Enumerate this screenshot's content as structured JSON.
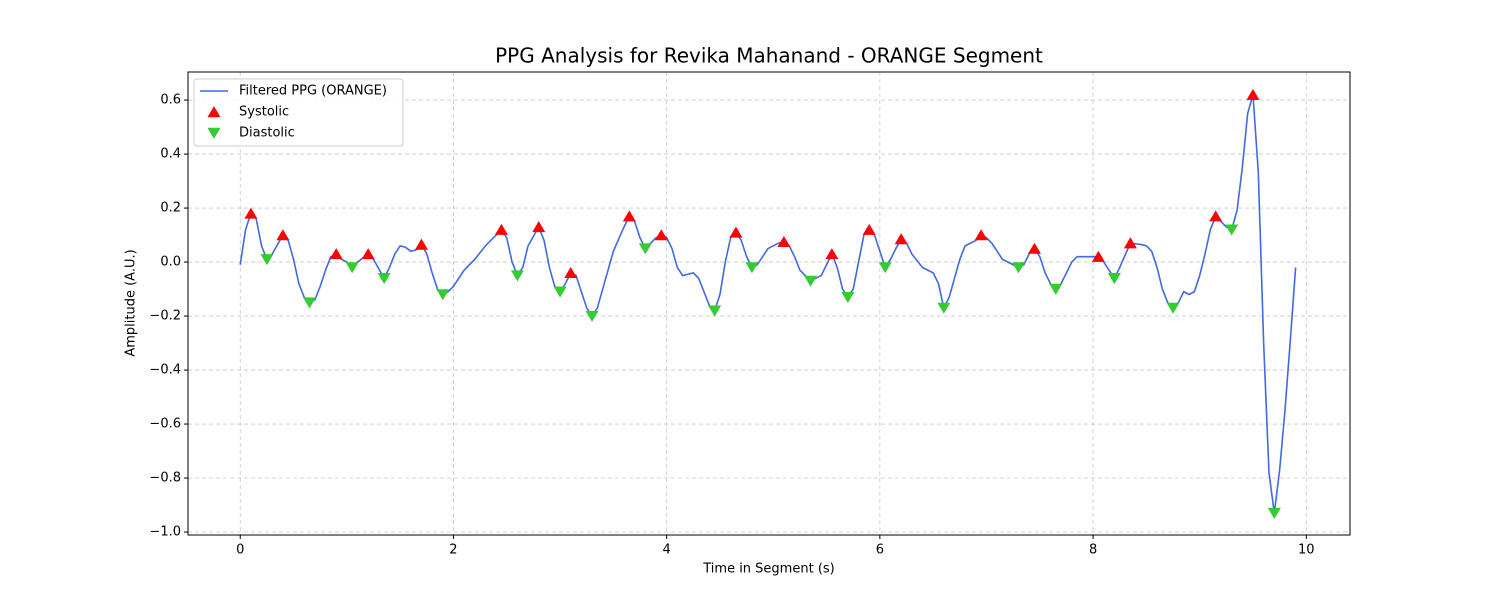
{
  "chart_data": {
    "type": "line",
    "title": "PPG Analysis for Revika Mahanand - ORANGE Segment",
    "xlabel": "Time in Segment (s)",
    "ylabel": "Amplitude (A.U.)",
    "xlim": [
      -0.49,
      10.41
    ],
    "ylim": [
      -1.011,
      0.704
    ],
    "xticks": [
      0,
      2,
      4,
      6,
      8,
      10
    ],
    "yticks": [
      {
        "value": -1.0,
        "label": "−1.0"
      },
      {
        "value": -0.8,
        "label": "−0.8"
      },
      {
        "value": -0.6,
        "label": "−0.6"
      },
      {
        "value": -0.4,
        "label": "−0.4"
      },
      {
        "value": -0.2,
        "label": "−0.2"
      },
      {
        "value": 0.0,
        "label": "0.0"
      },
      {
        "value": 0.2,
        "label": "0.2"
      },
      {
        "value": 0.4,
        "label": "0.4"
      },
      {
        "value": 0.6,
        "label": "0.6"
      }
    ],
    "grid": true,
    "legend": "upper left",
    "series": [
      {
        "name": "Filtered PPG (ORANGE)",
        "color": "#4169e1",
        "type": "line",
        "x": [
          0,
          0.05,
          0.1,
          0.15,
          0.2,
          0.25,
          0.3,
          0.4,
          0.45,
          0.5,
          0.55,
          0.6,
          0.65,
          0.7,
          0.75,
          0.8,
          0.85,
          0.9,
          0.95,
          1.0,
          1.05,
          1.1,
          1.2,
          1.25,
          1.35,
          1.4,
          1.45,
          1.5,
          1.55,
          1.6,
          1.65,
          1.7,
          1.75,
          1.8,
          1.85,
          1.9,
          1.95,
          2.0,
          2.1,
          2.2,
          2.3,
          2.4,
          2.45,
          2.5,
          2.55,
          2.6,
          2.65,
          2.7,
          2.8,
          2.85,
          2.9,
          2.95,
          3.0,
          3.05,
          3.1,
          3.15,
          3.2,
          3.25,
          3.3,
          3.35,
          3.4,
          3.5,
          3.6,
          3.65,
          3.7,
          3.75,
          3.8,
          3.85,
          3.9,
          3.95,
          4.0,
          4.05,
          4.1,
          4.15,
          4.25,
          4.3,
          4.35,
          4.4,
          4.45,
          4.5,
          4.55,
          4.6,
          4.65,
          4.7,
          4.75,
          4.8,
          4.85,
          4.95,
          5.05,
          5.1,
          5.15,
          5.2,
          5.25,
          5.35,
          5.45,
          5.5,
          5.55,
          5.6,
          5.65,
          5.7,
          5.75,
          5.8,
          5.85,
          5.9,
          5.95,
          6.0,
          6.05,
          6.1,
          6.15,
          6.2,
          6.25,
          6.3,
          6.4,
          6.5,
          6.55,
          6.6,
          6.65,
          6.75,
          6.8,
          6.9,
          6.95,
          7.0,
          7.05,
          7.15,
          7.25,
          7.3,
          7.35,
          7.4,
          7.45,
          7.5,
          7.55,
          7.6,
          7.65,
          7.7,
          7.75,
          7.8,
          7.85,
          7.95,
          8.05,
          8.1,
          8.2,
          8.25,
          8.35,
          8.45,
          8.5,
          8.55,
          8.6,
          8.65,
          8.7,
          8.75,
          8.8,
          8.85,
          8.9,
          8.95,
          9.0,
          9.05,
          9.1,
          9.15,
          9.2,
          9.25,
          9.3,
          9.35,
          9.4,
          9.45,
          9.5,
          9.55,
          9.6,
          9.65,
          9.7,
          9.75,
          9.8,
          9.85,
          9.9
        ],
        "values": [
          -0.01,
          0.12,
          0.18,
          0.16,
          0.06,
          0.01,
          0.03,
          0.1,
          0.08,
          0.01,
          -0.08,
          -0.13,
          -0.15,
          -0.14,
          -0.09,
          -0.03,
          0.02,
          0.03,
          0.01,
          0.0,
          -0.02,
          0.0,
          0.03,
          0.01,
          -0.06,
          -0.02,
          0.03,
          0.06,
          0.055,
          0.04,
          0.045,
          0.065,
          0.03,
          -0.04,
          -0.1,
          -0.12,
          -0.11,
          -0.09,
          -0.03,
          0.01,
          0.06,
          0.1,
          0.12,
          0.09,
          0.0,
          -0.05,
          -0.02,
          0.06,
          0.13,
          0.08,
          -0.02,
          -0.09,
          -0.11,
          -0.08,
          -0.04,
          -0.05,
          -0.11,
          -0.17,
          -0.2,
          -0.17,
          -0.1,
          0.04,
          0.13,
          0.17,
          0.15,
          0.09,
          0.05,
          0.07,
          0.09,
          0.1,
          0.09,
          0.05,
          -0.02,
          -0.05,
          -0.04,
          -0.06,
          -0.11,
          -0.16,
          -0.18,
          -0.12,
          0.0,
          0.09,
          0.11,
          0.08,
          0.02,
          -0.02,
          -0.01,
          0.05,
          0.07,
          0.075,
          0.06,
          0.02,
          -0.03,
          -0.07,
          -0.05,
          -0.01,
          0.03,
          -0.02,
          -0.1,
          -0.13,
          -0.1,
          0.0,
          0.1,
          0.12,
          0.1,
          0.04,
          -0.02,
          0.01,
          0.05,
          0.085,
          0.07,
          0.03,
          -0.02,
          -0.04,
          -0.08,
          -0.17,
          -0.13,
          0.01,
          0.06,
          0.08,
          0.1,
          0.09,
          0.07,
          0.01,
          -0.01,
          -0.02,
          -0.01,
          0.03,
          0.05,
          0.02,
          -0.04,
          -0.08,
          -0.1,
          -0.08,
          -0.04,
          0.0,
          0.02,
          0.02,
          0.02,
          0.0,
          -0.06,
          -0.02,
          0.07,
          0.065,
          0.06,
          0.04,
          -0.02,
          -0.1,
          -0.15,
          -0.17,
          -0.15,
          -0.11,
          -0.12,
          -0.11,
          -0.05,
          0.03,
          0.12,
          0.17,
          0.15,
          0.13,
          0.12,
          0.19,
          0.35,
          0.55,
          0.62,
          0.33,
          -0.3,
          -0.78,
          -0.93,
          -0.77,
          -0.55,
          -0.29,
          -0.02
        ]
      },
      {
        "name": "Systolic",
        "color": "#ff0000",
        "type": "scatter",
        "marker": "^",
        "x": [
          0.1,
          0.4,
          0.9,
          1.2,
          1.7,
          2.45,
          2.8,
          3.1,
          3.65,
          3.95,
          4.65,
          5.1,
          5.55,
          5.9,
          6.2,
          6.95,
          7.45,
          8.05,
          8.35,
          9.15,
          9.5
        ],
        "values": [
          0.18,
          0.1,
          0.03,
          0.03,
          0.065,
          0.12,
          0.13,
          -0.04,
          0.17,
          0.1,
          0.11,
          0.075,
          0.03,
          0.12,
          0.085,
          0.1,
          0.05,
          0.02,
          0.07,
          0.17,
          0.62
        ]
      },
      {
        "name": "Diastolic",
        "color": "#32cd32",
        "type": "scatter",
        "marker": "v",
        "x": [
          0.25,
          0.65,
          1.05,
          1.35,
          1.9,
          2.6,
          3.0,
          3.3,
          3.8,
          4.45,
          4.8,
          5.35,
          5.7,
          6.05,
          6.6,
          7.3,
          7.65,
          8.2,
          8.75,
          9.3,
          9.7
        ],
        "values": [
          0.01,
          -0.15,
          -0.02,
          -0.06,
          -0.12,
          -0.05,
          -0.11,
          -0.2,
          0.05,
          -0.18,
          -0.02,
          -0.07,
          -0.13,
          -0.02,
          -0.17,
          -0.02,
          -0.1,
          -0.06,
          -0.17,
          0.12,
          -0.93
        ]
      }
    ]
  }
}
